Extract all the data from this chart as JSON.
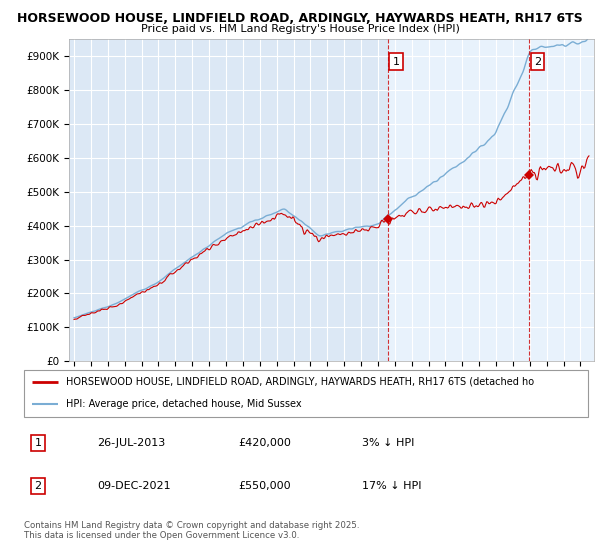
{
  "title": "HORSEWOOD HOUSE, LINDFIELD ROAD, ARDINGLY, HAYWARDS HEATH, RH17 6TS",
  "subtitle": "Price paid vs. HM Land Registry's House Price Index (HPI)",
  "legend_label_red": "HORSEWOOD HOUSE, LINDFIELD ROAD, ARDINGLY, HAYWARDS HEATH, RH17 6TS (detached ho",
  "legend_label_blue": "HPI: Average price, detached house, Mid Sussex",
  "footnote": "Contains HM Land Registry data © Crown copyright and database right 2025.\nThis data is licensed under the Open Government Licence v3.0.",
  "transaction1_date": "26-JUL-2013",
  "transaction1_price": 420000,
  "transaction1_note": "3% ↓ HPI",
  "transaction2_date": "09-DEC-2021",
  "transaction2_price": 550000,
  "transaction2_note": "17% ↓ HPI",
  "ylim": [
    0,
    950000
  ],
  "yticks": [
    0,
    100000,
    200000,
    300000,
    400000,
    500000,
    600000,
    700000,
    800000,
    900000
  ],
  "background_color": "#ffffff",
  "plot_bg_color": "#dce8f5",
  "plot_bg_highlight": "#e8f2fc",
  "grid_color": "#ffffff",
  "red_color": "#cc0000",
  "blue_color": "#7aadd4",
  "marker1_year": 2013.57,
  "marker2_year": 2021.94,
  "xstart": 1995,
  "xend": 2025
}
